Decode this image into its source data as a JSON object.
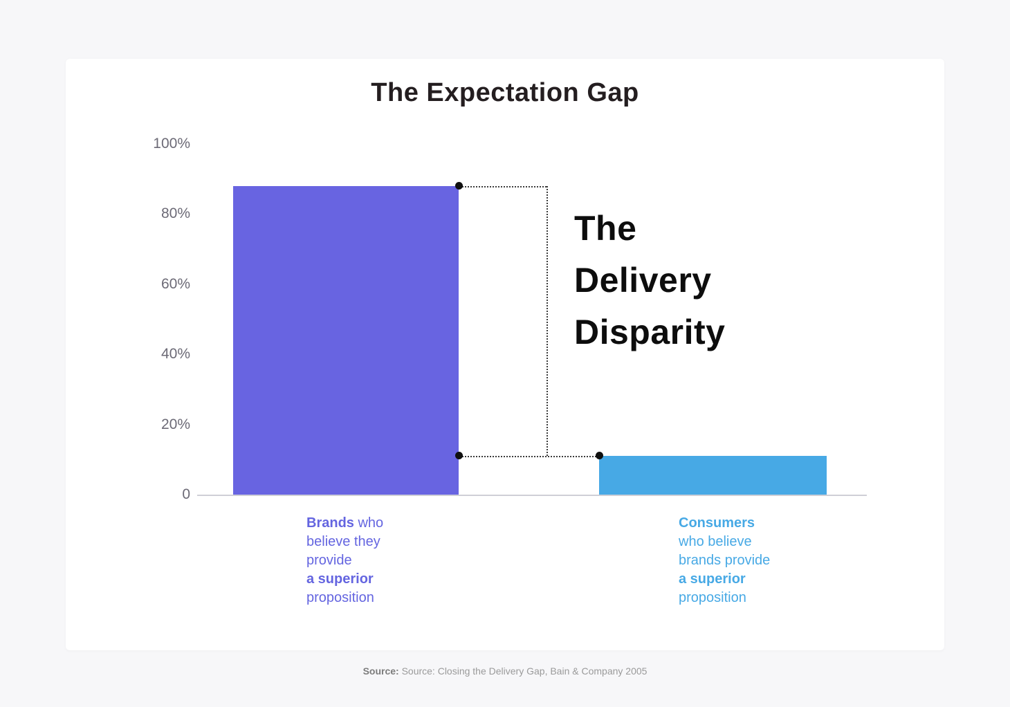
{
  "card": {
    "title": "The Expectation Gap"
  },
  "chart_data": {
    "type": "bar",
    "title": "The Expectation Gap",
    "categories": [
      "Brands who believe they provide a superior proposition",
      "Consumers who believe brands provide a superior proposition"
    ],
    "values": [
      88,
      11
    ],
    "colors": [
      "#6864e1",
      "#47a9e5"
    ],
    "ylim": [
      0,
      100
    ],
    "yticks": [
      {
        "value": 0,
        "label": "0"
      },
      {
        "value": 20,
        "label": "20%"
      },
      {
        "value": 40,
        "label": "40%"
      },
      {
        "value": 60,
        "label": "60%"
      },
      {
        "value": 80,
        "label": "80%"
      },
      {
        "value": 100,
        "label": "100%"
      }
    ],
    "grid": false,
    "legend": false,
    "annotation": "The Delivery Disparity"
  },
  "annotation": {
    "line1": "The",
    "line2": "Delivery",
    "line3": "Disparity"
  },
  "bar_labels": {
    "brands": {
      "bold_lead": "Brands",
      "line1_rest": " who",
      "line2": "believe they",
      "line3": "provide",
      "bold_line4": "a superior",
      "line5": "proposition"
    },
    "consumers": {
      "bold_lead": "Consumers",
      "line2": "who believe",
      "line3": "brands provide",
      "bold_line4": "a superior",
      "line5": "proposition"
    }
  },
  "source": {
    "label": "Source:",
    "text": " Source: Closing the Delivery Gap, Bain & Company 2005"
  }
}
